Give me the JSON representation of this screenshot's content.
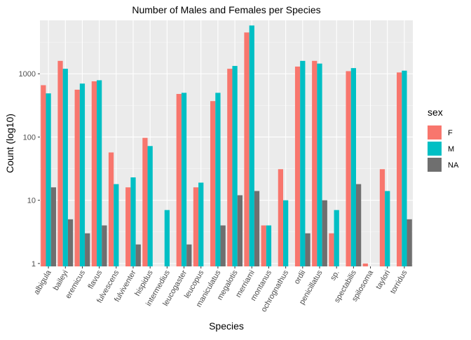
{
  "chart_data": {
    "type": "bar",
    "title": "Number of Males and Females per Species",
    "xlabel": "Species",
    "ylabel": "Count (log10)",
    "yscale": "log10",
    "ylim": [
      0.9,
      7000
    ],
    "yticks": [
      1,
      10,
      100,
      1000
    ],
    "ytick_labels": [
      "1",
      "10",
      "100",
      "1000"
    ],
    "categories": [
      "albigula",
      "baileyi",
      "eremicus",
      "flavus",
      "fulvescens",
      "fulviventer",
      "hispidus",
      "intermedius",
      "leucogaster",
      "leucopus",
      "maniculatus",
      "megalotis",
      "merriami",
      "montanus",
      "ochrognathus",
      "ordii",
      "penicillatus",
      "sp.",
      "spectabilis",
      "spilosoma",
      "taylori",
      "torridus"
    ],
    "series": [
      {
        "name": "F",
        "color": "#F8766D",
        "values": [
          660,
          1600,
          560,
          760,
          57,
          16,
          97,
          null,
          480,
          16,
          370,
          1200,
          4500,
          4,
          31,
          1300,
          1600,
          3,
          1100,
          1,
          31,
          1050
        ]
      },
      {
        "name": "M",
        "color": "#00BFC4",
        "values": [
          490,
          1200,
          700,
          790,
          18,
          23,
          72,
          7,
          500,
          19,
          500,
          1330,
          5800,
          4,
          10,
          1600,
          1450,
          7,
          1230,
          null,
          14,
          1120
        ]
      },
      {
        "name": "NA",
        "color": "#6F6F6F",
        "values": [
          16,
          5,
          3,
          4,
          null,
          2,
          null,
          null,
          2,
          null,
          4,
          12,
          14,
          null,
          null,
          3,
          10,
          null,
          18,
          null,
          null,
          5
        ]
      }
    ],
    "legend": {
      "title": "sex",
      "position": "right",
      "entries": [
        "F",
        "M",
        "NA"
      ]
    },
    "grid": true
  }
}
